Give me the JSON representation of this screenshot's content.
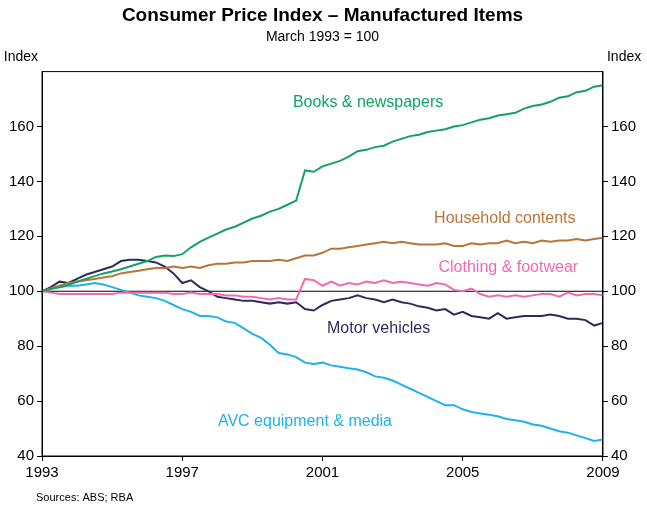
{
  "chart_data": {
    "type": "line",
    "title": "Consumer Price Index – Manufactured Items",
    "subtitle": "March 1993 = 100",
    "ylabel": "Index",
    "y2label": "Index",
    "source": "Sources: ABS; RBA",
    "baseline": 100,
    "grid": false,
    "x": [
      1993,
      1993.25,
      1993.5,
      1993.75,
      1994,
      1994.25,
      1994.5,
      1994.75,
      1995,
      1995.25,
      1995.5,
      1995.75,
      1996,
      1996.25,
      1996.5,
      1996.75,
      1997,
      1997.25,
      1997.5,
      1997.75,
      1998,
      1998.25,
      1998.5,
      1998.75,
      1999,
      1999.25,
      1999.5,
      1999.75,
      2000,
      2000.25,
      2000.5,
      2000.75,
      2001,
      2001.25,
      2001.5,
      2001.75,
      2002,
      2002.25,
      2002.5,
      2002.75,
      2003,
      2003.25,
      2003.5,
      2003.75,
      2004,
      2004.25,
      2004.5,
      2004.75,
      2005,
      2005.25,
      2005.5,
      2005.75,
      2006,
      2006.25,
      2006.5,
      2006.75,
      2007,
      2007.25,
      2007.5,
      2007.75,
      2008,
      2008.25,
      2008.5,
      2008.75,
      2009
    ],
    "xlim": [
      1993,
      2009
    ],
    "xticks": [
      1993,
      1997,
      2001,
      2005,
      2009
    ],
    "ylim": [
      40,
      180
    ],
    "yticks": [
      40,
      60,
      80,
      100,
      120,
      140,
      160
    ],
    "y2lim": [
      40,
      180
    ],
    "y2ticks": [
      40,
      60,
      80,
      100,
      120,
      140,
      160
    ],
    "series": [
      {
        "name": "Books & newspapers",
        "color": "#12a262",
        "values": [
          100,
          100.8,
          101.5,
          102.3,
          103.5,
          104.5,
          105.5,
          106.5,
          107.2,
          108,
          109,
          110,
          111,
          112.5,
          113,
          112.8,
          113.5,
          116,
          118,
          119.5,
          121,
          122.5,
          123.5,
          125,
          126.5,
          127.5,
          129,
          130,
          131.5,
          133,
          144,
          143.5,
          145.5,
          146.5,
          147.5,
          149,
          151,
          151.5,
          152.5,
          153,
          154.5,
          155.5,
          156.5,
          157,
          158,
          158.5,
          159,
          160,
          160.5,
          161.5,
          162.5,
          163,
          164,
          164.5,
          165,
          166.5,
          167.5,
          168,
          169,
          170.5,
          171,
          172.5,
          173,
          174.5,
          175
        ]
      },
      {
        "name": "Household contents",
        "color": "#b7743b",
        "values": [
          100,
          101,
          102,
          103,
          103.5,
          104,
          104.5,
          105,
          105.5,
          106.5,
          107,
          107.5,
          108,
          108.5,
          108.5,
          109,
          108.5,
          109,
          108.5,
          109.5,
          110,
          110,
          110.5,
          110.5,
          111,
          111,
          111,
          111.5,
          111,
          112,
          113,
          113,
          114,
          115.5,
          115.5,
          116,
          116.5,
          117,
          117.5,
          118,
          117.5,
          118,
          117.5,
          117,
          117,
          117,
          117.5,
          116.5,
          116.5,
          117.5,
          117,
          117.5,
          117.5,
          118.5,
          117.5,
          118,
          117.5,
          118.5,
          118,
          118.5,
          118.5,
          119,
          118.5,
          119,
          119.5
        ]
      },
      {
        "name": "Clothing & footwear",
        "color": "#f26aad",
        "values": [
          100,
          99.5,
          99,
          99,
          99,
          99,
          99,
          99,
          99,
          99.5,
          99.5,
          99.5,
          99.5,
          99.5,
          99.5,
          99,
          99,
          99.5,
          99,
          99,
          99,
          98.5,
          98.5,
          98,
          98,
          97.5,
          97,
          97.5,
          97,
          97,
          104.5,
          104,
          102,
          103.5,
          102,
          103,
          102.5,
          103.5,
          103,
          104,
          103,
          103.5,
          103,
          102.5,
          102,
          103,
          102.5,
          100.5,
          100,
          101,
          99,
          98,
          98.5,
          98,
          98.5,
          98,
          98.5,
          99,
          99,
          98,
          99.5,
          98.5,
          99,
          99,
          98.5
        ]
      },
      {
        "name": "Motor vehicles",
        "color": "#2e2a5e",
        "values": [
          100,
          101.5,
          103.5,
          103,
          104.5,
          106,
          107,
          108,
          109,
          111,
          111.5,
          111.5,
          111,
          110.5,
          109,
          106.5,
          103,
          104,
          101.5,
          100,
          98,
          97.5,
          97,
          96.5,
          96.5,
          96,
          95.5,
          96,
          95.5,
          96,
          93.5,
          93,
          95,
          96.5,
          97,
          97.5,
          98.5,
          97.5,
          97,
          96,
          97,
          96,
          95.5,
          94.5,
          94,
          93,
          93.5,
          91.5,
          92.5,
          91,
          90.5,
          90,
          92,
          90,
          90.5,
          91,
          91,
          91,
          91.5,
          91,
          90,
          90,
          89.5,
          87.5,
          88.5
        ]
      },
      {
        "name": "AVC equipment & media",
        "color": "#1fb3e8",
        "values": [
          100,
          101,
          101.5,
          102,
          102,
          102.5,
          103,
          102.5,
          101.5,
          100.5,
          99.5,
          98.5,
          98,
          97.5,
          96.5,
          95,
          93.5,
          92.5,
          91,
          91,
          90.5,
          89,
          88.5,
          86.5,
          84.5,
          83,
          80.5,
          77.5,
          77,
          76,
          74,
          73.5,
          74,
          73,
          72.5,
          72,
          71.5,
          70.5,
          69,
          68.5,
          67.5,
          66,
          64.5,
          63,
          61.5,
          60,
          58.5,
          58.5,
          57,
          56,
          55.5,
          55,
          54.5,
          53.5,
          53,
          52.5,
          51.5,
          51,
          50,
          49,
          48.5,
          47.5,
          46.5,
          45.5,
          46
        ]
      }
    ]
  }
}
